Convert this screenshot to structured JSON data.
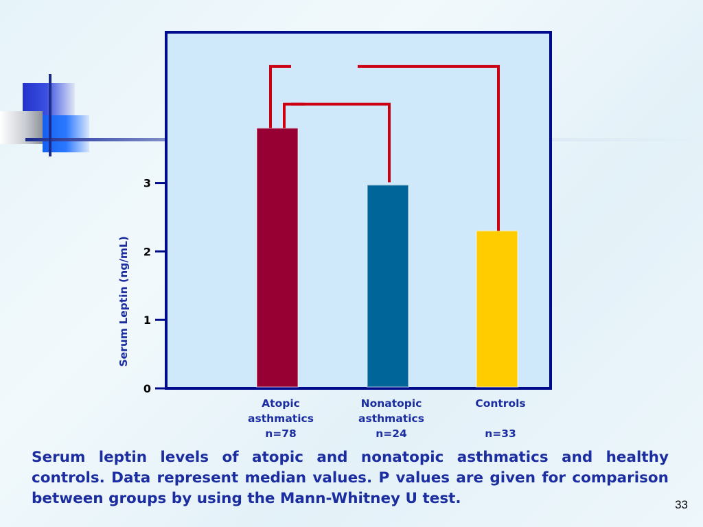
{
  "slide": {
    "caption": "Serum leptin levels of atopic and nonatopic asthmatics and healthy controls. Data represent median values. P values are given for comparison between groups by using the Mann-Whitney U test.",
    "page_number": "33"
  },
  "colors": {
    "plot_background": "#cfe9fb",
    "frame": "#000b8a",
    "axis_text": "#1b2d9f",
    "ylabel": "#1b2d9f",
    "bracket": "#cc0010"
  },
  "chart_data": {
    "type": "bar",
    "categories": [
      "Atopic asthmatics",
      "Nonatopic asthmatics",
      "Controls"
    ],
    "category_labels": [
      [
        "Atopic",
        "asthmatics",
        "n=78"
      ],
      [
        "Nonatopic",
        "asthmatics",
        "n=24"
      ],
      [
        "Controls",
        "",
        "n=33"
      ]
    ],
    "values": [
      3.8,
      2.97,
      2.3
    ],
    "bar_colors": [
      "#960032",
      "#006699",
      "#ffcc00"
    ],
    "ylabel": "Serum Leptin (ng/mL)",
    "yticks": [
      0,
      1,
      2,
      3
    ],
    "ylim": [
      0,
      5.2
    ],
    "grid": false,
    "brackets": [
      {
        "from": 0,
        "to": 2,
        "level": 4.7
      },
      {
        "from": 0,
        "to": 1,
        "level": 4.15
      }
    ]
  }
}
